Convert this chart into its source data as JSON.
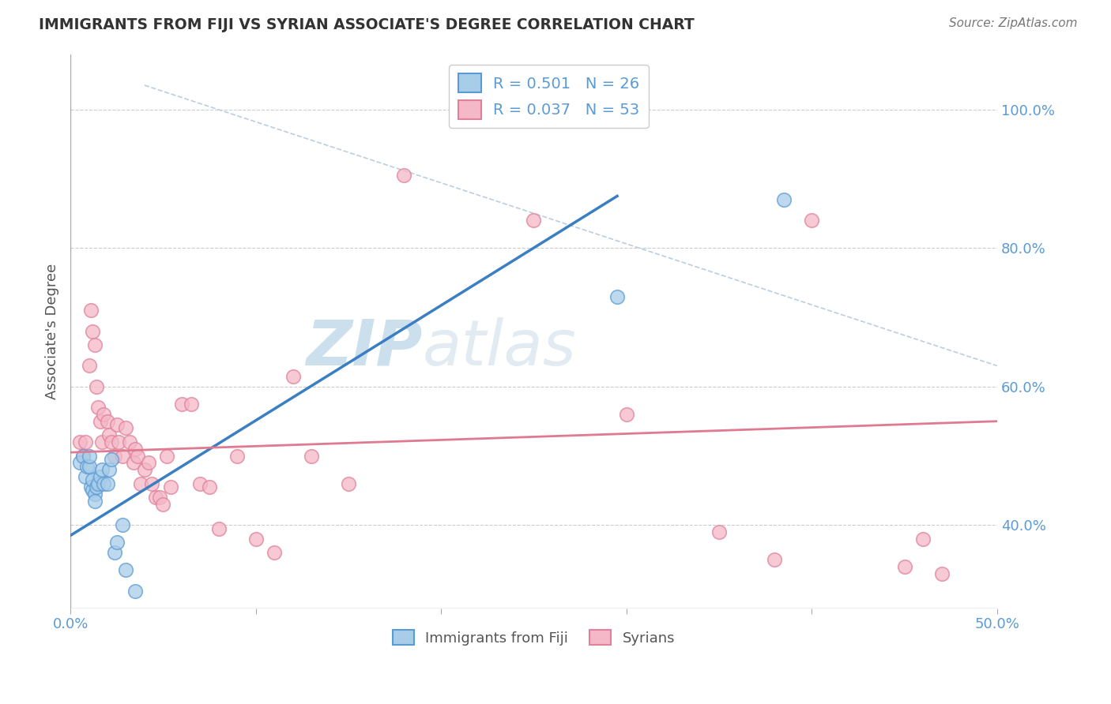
{
  "title": "IMMIGRANTS FROM FIJI VS SYRIAN ASSOCIATE'S DEGREE CORRELATION CHART",
  "source": "Source: ZipAtlas.com",
  "ylabel": "Associate's Degree",
  "legend_fiji_r": "R = 0.501",
  "legend_fiji_n": "N = 26",
  "legend_syrian_r": "R = 0.037",
  "legend_syrian_n": "N = 53",
  "xlim": [
    0.0,
    0.5
  ],
  "ylim": [
    0.28,
    1.08
  ],
  "xticks": [
    0.0,
    0.1,
    0.2,
    0.3,
    0.4,
    0.5
  ],
  "xtick_labels": [
    "0.0%",
    "",
    "",
    "",
    "",
    "50.0%"
  ],
  "ytick_labels_right": [
    "40.0%",
    "60.0%",
    "80.0%",
    "100.0%"
  ],
  "yticks_right": [
    0.4,
    0.6,
    0.8,
    1.0
  ],
  "color_fiji": "#a8cde8",
  "color_fiji_edge": "#5b9bd5",
  "color_syrian": "#f4b8c8",
  "color_syrian_edge": "#e0809a",
  "color_fiji_line": "#3a7fc1",
  "color_syrian_line": "#e07a90",
  "color_diagonal": "#b8cfe0",
  "title_color": "#333333",
  "axis_label_color": "#5b9bd5",
  "fiji_points_x": [
    0.005,
    0.007,
    0.008,
    0.009,
    0.01,
    0.01,
    0.011,
    0.012,
    0.012,
    0.013,
    0.013,
    0.014,
    0.015,
    0.016,
    0.017,
    0.018,
    0.02,
    0.021,
    0.022,
    0.024,
    0.025,
    0.028,
    0.03,
    0.035,
    0.295,
    0.385
  ],
  "fiji_points_y": [
    0.49,
    0.5,
    0.47,
    0.485,
    0.485,
    0.5,
    0.455,
    0.45,
    0.465,
    0.445,
    0.435,
    0.455,
    0.46,
    0.47,
    0.48,
    0.46,
    0.46,
    0.48,
    0.495,
    0.36,
    0.375,
    0.4,
    0.335,
    0.305,
    0.73,
    0.87
  ],
  "syrian_points_x": [
    0.005,
    0.007,
    0.008,
    0.01,
    0.011,
    0.012,
    0.013,
    0.014,
    0.015,
    0.016,
    0.017,
    0.018,
    0.02,
    0.021,
    0.022,
    0.024,
    0.025,
    0.026,
    0.028,
    0.03,
    0.032,
    0.034,
    0.035,
    0.036,
    0.038,
    0.04,
    0.042,
    0.044,
    0.046,
    0.048,
    0.05,
    0.052,
    0.054,
    0.06,
    0.065,
    0.07,
    0.075,
    0.08,
    0.09,
    0.1,
    0.11,
    0.12,
    0.13,
    0.15,
    0.18,
    0.25,
    0.3,
    0.35,
    0.38,
    0.4,
    0.45,
    0.46,
    0.47
  ],
  "syrian_points_y": [
    0.52,
    0.5,
    0.52,
    0.63,
    0.71,
    0.68,
    0.66,
    0.6,
    0.57,
    0.55,
    0.52,
    0.56,
    0.55,
    0.53,
    0.52,
    0.5,
    0.545,
    0.52,
    0.5,
    0.54,
    0.52,
    0.49,
    0.51,
    0.5,
    0.46,
    0.48,
    0.49,
    0.46,
    0.44,
    0.44,
    0.43,
    0.5,
    0.455,
    0.575,
    0.575,
    0.46,
    0.455,
    0.395,
    0.5,
    0.38,
    0.36,
    0.615,
    0.5,
    0.46,
    0.905,
    0.84,
    0.56,
    0.39,
    0.35,
    0.84,
    0.34,
    0.38,
    0.33
  ],
  "fiji_line_x": [
    0.0,
    0.295
  ],
  "fiji_line_y": [
    0.385,
    0.875
  ],
  "syrian_line_x": [
    0.0,
    0.5
  ],
  "syrian_line_y": [
    0.505,
    0.55
  ],
  "diag_line_x": [
    0.04,
    0.5
  ],
  "diag_line_y": [
    1.035,
    0.63
  ],
  "grid_color": "#cccccc",
  "grid_yticks": [
    0.4,
    0.6,
    0.8,
    1.0
  ],
  "background_color": "#ffffff",
  "watermark_color": "#c8d8e8"
}
